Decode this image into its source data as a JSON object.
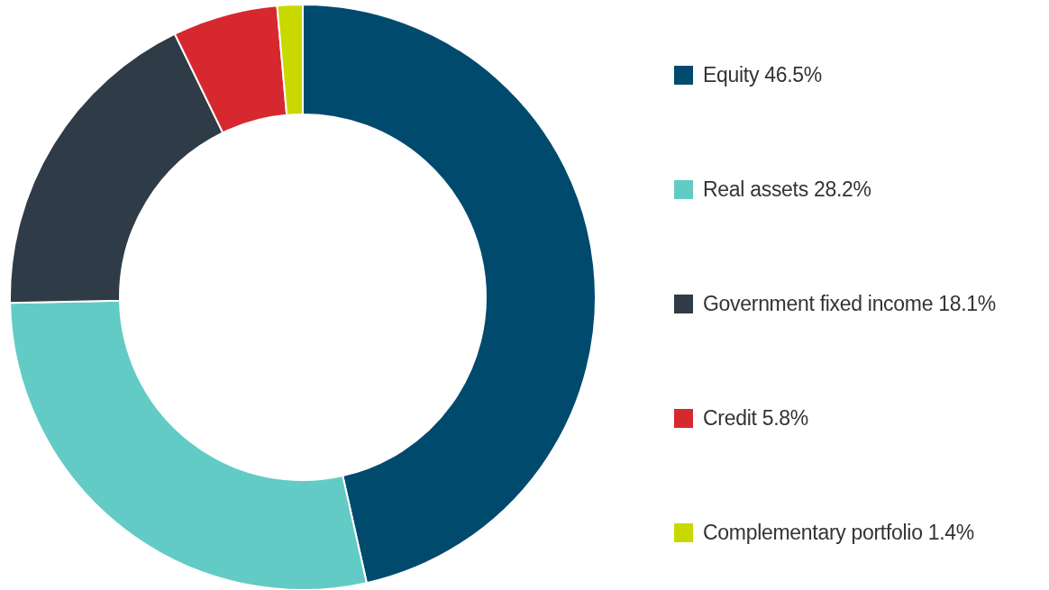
{
  "chart_data": {
    "type": "donut",
    "categories": [
      "Equity",
      "Real assets",
      "Government fixed income",
      "Credit",
      "Complementary portfolio"
    ],
    "values": [
      46.5,
      28.2,
      18.1,
      5.8,
      1.4
    ],
    "value_labels": [
      "46.5%",
      "28.2%",
      "18.1%",
      "5.8%",
      "1.4%"
    ],
    "colors": [
      "#004a6e",
      "#63cbc6",
      "#2f3c47",
      "#d7282f",
      "#c8d900"
    ],
    "legend": "right"
  }
}
